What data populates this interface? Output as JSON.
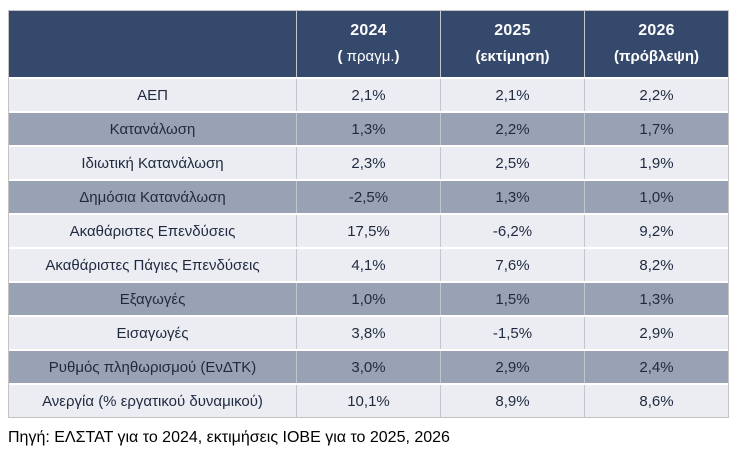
{
  "table": {
    "header": {
      "cols": [
        {
          "year": "2024",
          "sub_open": "( ",
          "sub_word": "πραγμ.",
          "sub_close": ")",
          "sub_word_weight": "regular"
        },
        {
          "year": "2025",
          "sub_open": "(",
          "sub_word": "εκτίμηση",
          "sub_close": ")",
          "sub_word_weight": "bold"
        },
        {
          "year": "2026",
          "sub_open": "(",
          "sub_word": "πρόβλεψη",
          "sub_close": ")",
          "sub_word_weight": "bold"
        }
      ]
    },
    "rows": [
      {
        "label": "ΑΕΠ",
        "values": [
          "2,1%",
          "2,1%",
          "2,2%"
        ],
        "band": "light"
      },
      {
        "label": "Κατανάλωση",
        "values": [
          "1,3%",
          "2,2%",
          "1,7%"
        ],
        "band": "dark"
      },
      {
        "label": "Ιδιωτική Κατανάλωση",
        "values": [
          "2,3%",
          "2,5%",
          "1,9%"
        ],
        "band": "light"
      },
      {
        "label": "Δημόσια Κατανάλωση",
        "values": [
          "-2,5%",
          "1,3%",
          "1,0%"
        ],
        "band": "dark"
      },
      {
        "label": "Ακαθάριστες Επενδύσεις",
        "values": [
          "17,5%",
          "-6,2%",
          "9,2%"
        ],
        "band": "light"
      },
      {
        "label": "Ακαθάριστες Πάγιες Επενδύσεις",
        "values": [
          "4,1%",
          "7,6%",
          "8,2%"
        ],
        "band": "light"
      },
      {
        "label": "Εξαγωγές",
        "values": [
          "1,0%",
          "1,5%",
          "1,3%"
        ],
        "band": "dark"
      },
      {
        "label": "Εισαγωγές",
        "values": [
          "3,8%",
          "-1,5%",
          "2,9%"
        ],
        "band": "light"
      },
      {
        "label": "Ρυθμός πληθωρισμού (ΕνΔΤΚ)",
        "values": [
          "3,0%",
          "2,9%",
          "2,4%"
        ],
        "band": "dark"
      },
      {
        "label": "Ανεργία (% εργατικού δυναμικού)",
        "values": [
          "10,1%",
          "8,9%",
          "8,6%"
        ],
        "band": "light"
      }
    ]
  },
  "source_note": "Πηγή: ΕΛΣΤΑΤ για το 2024, εκτιμήσεις ΙΟΒΕ για το 2025, 2026",
  "colors": {
    "header_bg": "#35496d",
    "header_text": "#ffffff",
    "band_light": "#ebedf2",
    "band_dark": "#99a1b4",
    "divider": "#c2c6ce",
    "outer_border": "#c6c2c2",
    "body_text": "#1f2a40"
  },
  "chart_data": {
    "type": "table",
    "title": "",
    "categories": [
      "ΑΕΠ",
      "Κατανάλωση",
      "Ιδιωτική Κατανάλωση",
      "Δημόσια Κατανάλωση",
      "Ακαθάριστες Επενδύσεις",
      "Ακαθάριστες Πάγιες Επενδύσεις",
      "Εξαγωγές",
      "Εισαγωγές",
      "Ρυθμός πληθωρισμού (ΕνΔΤΚ)",
      "Ανεργία (% εργατικού δυναμικού)"
    ],
    "series": [
      {
        "name": "2024 ( πραγμ.)",
        "values": [
          2.1,
          1.3,
          2.3,
          -2.5,
          17.5,
          4.1,
          1.0,
          3.8,
          3.0,
          10.1
        ]
      },
      {
        "name": "2025 (εκτίμηση)",
        "values": [
          2.1,
          2.2,
          2.5,
          1.3,
          -6.2,
          7.6,
          1.5,
          -1.5,
          2.9,
          8.9
        ]
      },
      {
        "name": "2026 (πρόβλεψη)",
        "values": [
          2.2,
          1.7,
          1.9,
          1.0,
          9.2,
          8.2,
          1.3,
          2.9,
          2.4,
          8.6
        ]
      }
    ],
    "unit": "%",
    "source": "Πηγή: ΕΛΣΤΑΤ για το 2024, εκτιμήσεις ΙΟΒΕ για το 2025, 2026"
  }
}
